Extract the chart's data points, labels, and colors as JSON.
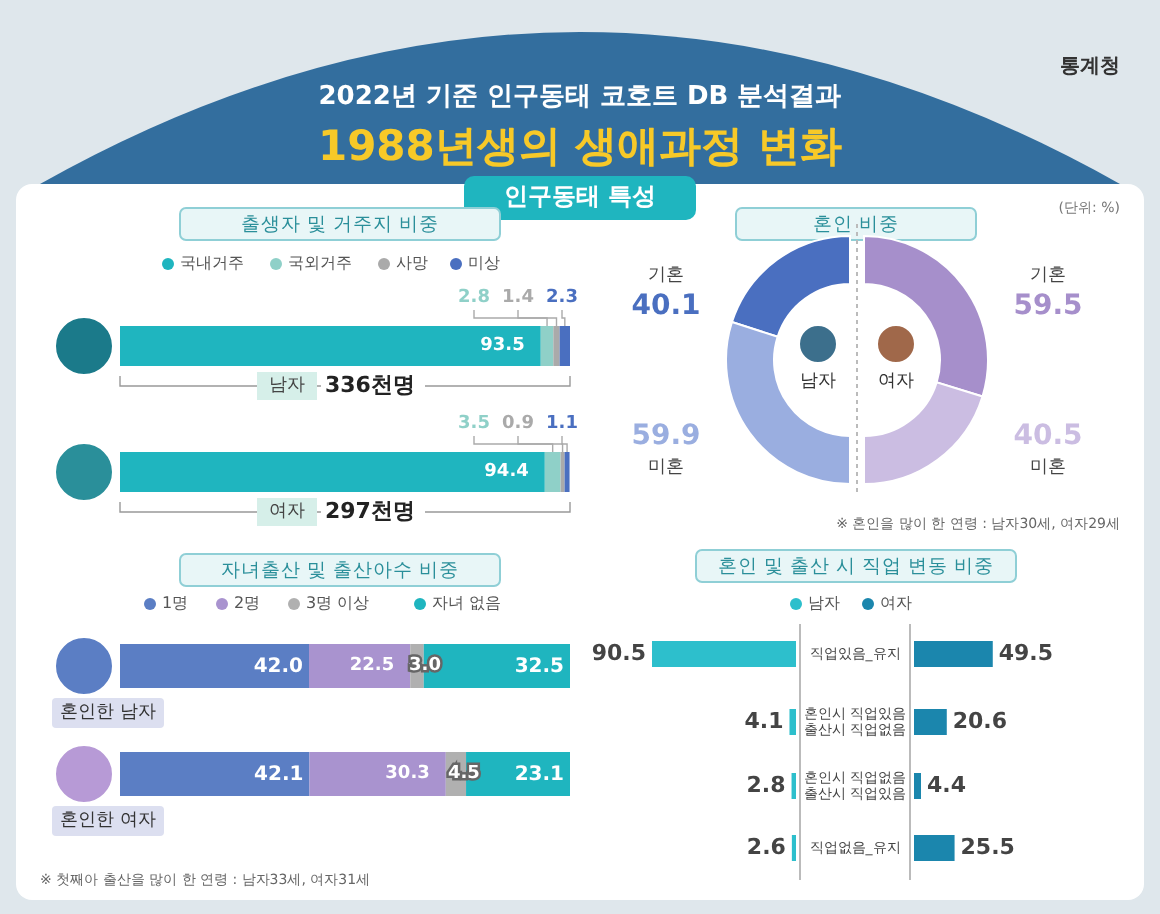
{
  "chart_data": [
    {
      "type": "other",
      "title": "1988년생의 생애과정 변화",
      "subtitle": "2022년 기준 인구동태 코호트 DB 분석결과",
      "annotations": [
        "인구동태 특성",
        "통계청",
        "(단위: %)"
      ]
    },
    {
      "type": "bar",
      "orientation": "horizontal",
      "stacked": true,
      "title": "출생자 및 거주지 비중",
      "categories": [
        "남자",
        "여자"
      ],
      "xlim": [
        0,
        100
      ],
      "tick_labels": false,
      "legend": "top",
      "data_labels": true,
      "annotations": [
        "336천명",
        "297천명"
      ],
      "series": [
        {
          "name": "국내거주",
          "color": "#1fb5bf",
          "values": [
            93.5,
            94.4
          ]
        },
        {
          "name": "국외거주",
          "color": "#8fd0c8",
          "values": [
            2.8,
            3.5
          ]
        },
        {
          "name": "사망",
          "color": "#aaaaaa",
          "values": [
            1.4,
            0.9
          ]
        },
        {
          "name": "미상",
          "color": "#4a6fc0",
          "values": [
            2.3,
            1.1
          ]
        }
      ]
    },
    {
      "type": "donut",
      "title": "혼인 비중",
      "categories": [
        "기혼",
        "미혼"
      ],
      "values": [
        40.1,
        59.9
      ],
      "colors": [
        "#4a6fc0",
        "#9aaee0"
      ],
      "data_labels": true,
      "annotations": [
        "남자"
      ]
    },
    {
      "type": "donut",
      "categories": [
        "기혼",
        "미혼"
      ],
      "values": [
        59.5,
        40.5
      ],
      "colors": [
        "#a68fcb",
        "#cbbde2"
      ],
      "data_labels": true,
      "annotations": [
        "여자",
        "※ 혼인을 많이 한 연령 : 남자30세, 여자29세"
      ]
    },
    {
      "type": "bar",
      "orientation": "horizontal",
      "stacked": true,
      "title": "자녀출산 및 출산아수 비중",
      "categories": [
        "혼인한 남자",
        "혼인한 여자"
      ],
      "xlim": [
        0,
        100
      ],
      "tick_labels": false,
      "legend": "top",
      "data_labels": true,
      "annotations": [
        "※ 첫째아 출산을 많이 한 연령 : 남자33세, 여자31세"
      ],
      "series": [
        {
          "name": "1명",
          "color": "#5b7ec4",
          "values": [
            42.0,
            42.1
          ],
          "value_labels": [
            "42.0",
            "42.1"
          ]
        },
        {
          "name": "2명",
          "color": "#a993cf",
          "values": [
            22.5,
            30.3
          ],
          "value_labels": [
            "22.5",
            "30.3"
          ]
        },
        {
          "name": "3명 이상",
          "color": "#b0b0b0",
          "values": [
            3.0,
            4.5
          ],
          "value_labels": [
            "3.0",
            "4.5"
          ]
        },
        {
          "name": "자녀 없음",
          "color": "#1fb5bf",
          "values": [
            32.5,
            23.1
          ],
          "value_labels": [
            "32.5",
            "23.1"
          ]
        }
      ]
    },
    {
      "type": "bar",
      "orientation": "horizontal",
      "title": "혼인 및 출산 시 직업 변동 비중",
      "categories": [
        "직업있음_유지",
        "혼인시 직업있음\n출산시 직업없음",
        "혼인시 직업없음\n출산시 직업있음",
        "직업없음_유지"
      ],
      "tick_labels": false,
      "legend": "top",
      "data_labels": true,
      "series": [
        {
          "name": "남자",
          "color": "#2dbfcc",
          "values": [
            90.5,
            4.1,
            2.8,
            2.6
          ]
        }
      ]
    },
    {
      "type": "bar",
      "orientation": "horizontal",
      "categories": [
        null,
        null,
        null,
        null
      ],
      "tick_labels": false,
      "legend": "top",
      "data_labels": true,
      "series": [
        {
          "name": "여자",
          "color": "#1b86ad",
          "values": [
            49.5,
            20.6,
            4.4,
            25.5
          ]
        }
      ]
    }
  ]
}
